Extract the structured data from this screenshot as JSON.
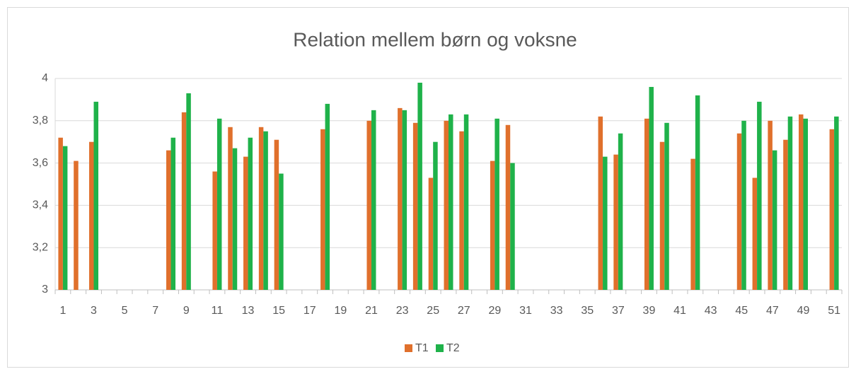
{
  "chart_data": {
    "type": "bar",
    "title": "Relation mellem børn og voksne",
    "categories": [
      1,
      null,
      3,
      null,
      5,
      null,
      7,
      null,
      9,
      null,
      11,
      null,
      13,
      null,
      15,
      null,
      17,
      null,
      19,
      null,
      21,
      null,
      23,
      null,
      25,
      null,
      27,
      null,
      29,
      null,
      31,
      null,
      33,
      null,
      35,
      null,
      37,
      null,
      39,
      null,
      41,
      null,
      43,
      null,
      45,
      null,
      47,
      null,
      49,
      null,
      51
    ],
    "series": [
      {
        "name": "T1",
        "color": "#e0702c",
        "values": [
          3.72,
          3.61,
          3.7,
          null,
          null,
          null,
          null,
          3.66,
          3.84,
          null,
          3.56,
          3.77,
          3.63,
          3.77,
          3.71,
          null,
          null,
          3.76,
          null,
          null,
          3.8,
          null,
          3.86,
          3.79,
          3.53,
          3.8,
          3.75,
          null,
          3.61,
          3.78,
          null,
          null,
          null,
          null,
          null,
          3.82,
          3.64,
          null,
          3.81,
          3.7,
          null,
          3.62,
          null,
          null,
          3.74,
          3.53,
          3.8,
          3.71,
          3.83,
          null,
          3.76
        ]
      },
      {
        "name": "T2",
        "color": "#1fb24a",
        "values": [
          3.68,
          null,
          3.89,
          null,
          null,
          null,
          null,
          3.72,
          3.93,
          null,
          3.81,
          3.67,
          3.72,
          3.75,
          3.55,
          null,
          null,
          3.88,
          null,
          null,
          3.85,
          null,
          3.85,
          3.98,
          3.7,
          3.83,
          3.83,
          null,
          3.81,
          3.6,
          null,
          null,
          null,
          null,
          null,
          3.63,
          3.74,
          null,
          3.96,
          3.79,
          null,
          3.92,
          null,
          null,
          3.8,
          3.89,
          3.66,
          3.82,
          3.81,
          null,
          3.82
        ]
      }
    ],
    "ylim": [
      3,
      4
    ],
    "yticks": [
      3,
      {
        "value": 3.2,
        "label": "3,2"
      },
      {
        "value": 3.4,
        "label": "3,4"
      },
      {
        "value": 3.6,
        "label": "3,6"
      },
      {
        "value": 3.8,
        "label": "3,8"
      },
      4
    ],
    "grid": true,
    "legend": "bottom"
  }
}
